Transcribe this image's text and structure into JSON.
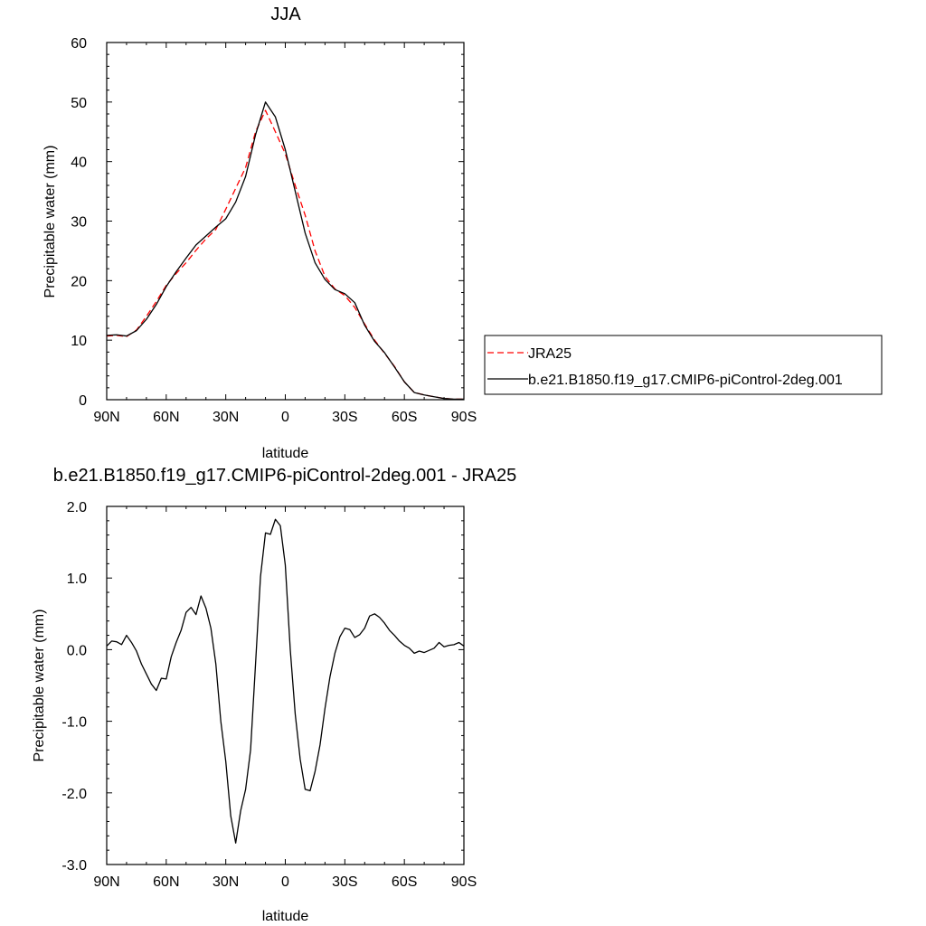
{
  "chart_data": [
    {
      "type": "line",
      "title": "JJA",
      "xlabel": "latitude",
      "ylabel": "Precipitable water (mm)",
      "xlim": [
        90,
        -90
      ],
      "ylim": [
        0,
        60
      ],
      "xticks": [
        90,
        60,
        30,
        0,
        -30,
        -60,
        -90
      ],
      "xticklabels": [
        "90N",
        "60N",
        "30N",
        "0",
        "30S",
        "60S",
        "90S"
      ],
      "yticks": [
        0,
        10,
        20,
        30,
        40,
        50,
        60
      ],
      "yticklabels": [
        "0",
        "10",
        "20",
        "30",
        "40",
        "50",
        "60"
      ],
      "grid": false,
      "legend_position": "right",
      "series": [
        {
          "name": "JRA25",
          "color": "#ff0000",
          "dash": "dashed",
          "x": [
            90,
            85,
            80,
            75,
            70,
            65,
            60,
            55,
            50,
            45,
            40,
            35,
            30,
            25,
            20,
            15,
            10,
            5,
            0,
            -5,
            -10,
            -15,
            -20,
            -25,
            -30,
            -35,
            -40,
            -45,
            -50,
            -55,
            -60,
            -65,
            -70,
            -75,
            -80,
            -85,
            -90
          ],
          "y": [
            10.7,
            10.8,
            10.6,
            11.7,
            14.0,
            16.5,
            19.2,
            21.2,
            23.0,
            25.1,
            27.0,
            28.6,
            32.0,
            35.5,
            39.0,
            45.0,
            48.6,
            45.0,
            41.3,
            36.0,
            31.0,
            25.0,
            20.7,
            18.6,
            17.5,
            15.5,
            12.7,
            10.0,
            7.8,
            5.6,
            3.0,
            1.2,
            0.8,
            0.5,
            0.2,
            0.1,
            0.1
          ]
        },
        {
          "name": "b.e21.B1850.f19_g17.CMIP6-piControl-2deg.001",
          "color": "#000000",
          "dash": "solid",
          "x": [
            90,
            85,
            80,
            75,
            70,
            65,
            60,
            55,
            50,
            45,
            40,
            35,
            30,
            25,
            20,
            15,
            10,
            5,
            0,
            -5,
            -10,
            -15,
            -20,
            -25,
            -30,
            -35,
            -40,
            -45,
            -50,
            -55,
            -60,
            -65,
            -70,
            -75,
            -80,
            -85,
            -90
          ],
          "y": [
            10.8,
            10.9,
            10.7,
            11.6,
            13.5,
            16.0,
            19.0,
            21.5,
            23.8,
            26.0,
            27.5,
            29.0,
            30.4,
            33.2,
            37.5,
            44.5,
            50.0,
            47.5,
            42.0,
            35.0,
            28.0,
            23.0,
            20.2,
            18.5,
            17.8,
            16.3,
            12.5,
            9.8,
            7.9,
            5.5,
            3.0,
            1.2,
            0.8,
            0.5,
            0.2,
            0.1,
            0.1
          ]
        }
      ]
    },
    {
      "type": "line",
      "title": "b.e21.B1850.f19_g17.CMIP6-piControl-2deg.001 - JRA25",
      "xlabel": "latitude",
      "ylabel": "Precipitable water (mm)",
      "xlim": [
        90,
        -90
      ],
      "ylim": [
        -3.0,
        2.0
      ],
      "xticks": [
        90,
        60,
        30,
        0,
        -30,
        -60,
        -90
      ],
      "xticklabels": [
        "90N",
        "60N",
        "30N",
        "0",
        "30S",
        "60S",
        "90S"
      ],
      "yticks": [
        -3.0,
        -2.0,
        -1.0,
        0.0,
        1.0,
        2.0
      ],
      "yticklabels": [
        "-3.0",
        "-2.0",
        "-1.0",
        "0.0",
        "1.0",
        "2.0"
      ],
      "grid": false,
      "series": [
        {
          "color": "#000000",
          "dash": "solid",
          "x": [
            90,
            87.5,
            85,
            82.5,
            80,
            77.5,
            75,
            72.5,
            70,
            67.5,
            65,
            62.5,
            60,
            57.5,
            55,
            52.5,
            50,
            47.5,
            45,
            42.5,
            40,
            37.5,
            35,
            32.5,
            30,
            27.5,
            25,
            22.5,
            20,
            17.5,
            15,
            12.5,
            10,
            7.5,
            5,
            2.5,
            0,
            -2.5,
            -5,
            -7.5,
            -10,
            -12.5,
            -15,
            -17.5,
            -20,
            -22.5,
            -25,
            -27.5,
            -30,
            -32.5,
            -35,
            -37.5,
            -40,
            -42.5,
            -45,
            -47.5,
            -50,
            -52.5,
            -55,
            -57.5,
            -60,
            -62.5,
            -65,
            -67.5,
            -70,
            -72.5,
            -75,
            -77.5,
            -80,
            -82.5,
            -85,
            -87.5,
            -90
          ],
          "y": [
            0.05,
            0.12,
            0.11,
            0.07,
            0.2,
            0.1,
            -0.02,
            -0.2,
            -0.34,
            -0.48,
            -0.57,
            -0.4,
            -0.41,
            -0.1,
            0.1,
            0.27,
            0.52,
            0.59,
            0.49,
            0.75,
            0.58,
            0.3,
            -0.2,
            -1.0,
            -1.56,
            -2.32,
            -2.7,
            -2.25,
            -1.95,
            -1.4,
            -0.2,
            1.02,
            1.63,
            1.61,
            1.82,
            1.73,
            1.18,
            0.0,
            -0.9,
            -1.53,
            -1.95,
            -1.97,
            -1.7,
            -1.33,
            -0.82,
            -0.38,
            -0.05,
            0.18,
            0.3,
            0.28,
            0.17,
            0.21,
            0.3,
            0.47,
            0.5,
            0.45,
            0.37,
            0.27,
            0.2,
            0.12,
            0.06,
            0.02,
            -0.05,
            -0.02,
            -0.04,
            -0.01,
            0.02,
            0.1,
            0.04,
            0.06,
            0.07,
            0.1,
            0.05
          ]
        }
      ]
    }
  ]
}
